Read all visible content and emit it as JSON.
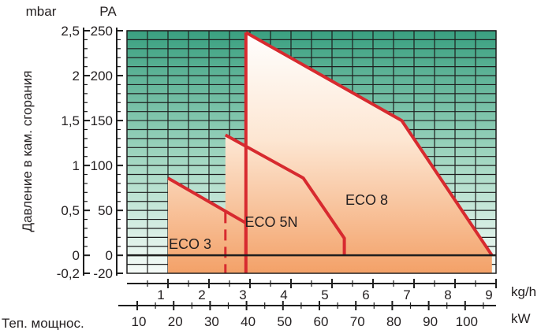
{
  "chart_data": {
    "type": "area",
    "y_left": {
      "unit": "mbar",
      "ticks": [
        "2,5",
        "2",
        "1,5",
        "1",
        "0,5",
        "0",
        "-0,2"
      ],
      "values": [
        2.5,
        2,
        1.5,
        1,
        0.5,
        0,
        -0.2
      ]
    },
    "y_right": {
      "unit": "PA",
      "ticks": [
        "250",
        "200",
        "150",
        "100",
        "50",
        "0",
        "-20"
      ],
      "values": [
        250,
        200,
        150,
        100,
        50,
        0,
        -20
      ]
    },
    "ylabel": "Давление в кам. сгорания",
    "ylim": [
      -20,
      250
    ],
    "x_primary": {
      "unit": "kg/h",
      "ticks": [
        "1",
        "2",
        "3",
        "4",
        "5",
        "6",
        "7",
        "8",
        "9"
      ],
      "values": [
        1,
        2,
        3,
        4,
        5,
        6,
        7,
        8,
        9
      ],
      "range": [
        0,
        9
      ]
    },
    "x_secondary": {
      "unit": "kW",
      "label": "Теп. мощнос.",
      "ticks": [
        "10",
        "20",
        "30",
        "40",
        "50",
        "60",
        "70",
        "80",
        "90",
        "100"
      ],
      "values": [
        10,
        20,
        30,
        40,
        50,
        60,
        70,
        80,
        90,
        100
      ]
    },
    "grid": true,
    "series": [
      {
        "name": "ECO 3",
        "points": [
          [
            1.0,
            86
          ],
          [
            2.9,
            36
          ],
          [
            2.9,
            0
          ]
        ],
        "region_x": [
          1.0,
          2.9
        ],
        "dashed_x": 2.4
      },
      {
        "name": "ECO 5N",
        "points": [
          [
            2.4,
            134
          ],
          [
            4.3,
            86
          ],
          [
            5.3,
            19
          ],
          [
            5.3,
            0
          ]
        ],
        "region_x": [
          2.4,
          5.3
        ],
        "dashed_x": 2.9
      },
      {
        "name": "ECO 8",
        "points": [
          [
            2.9,
            248
          ],
          [
            6.7,
            150
          ],
          [
            8.9,
            0
          ]
        ],
        "region_x": [
          2.9,
          8.9
        ]
      }
    ]
  }
}
